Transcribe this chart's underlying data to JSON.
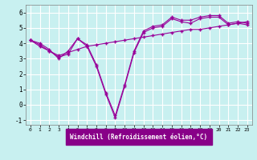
{
  "xlabel": "Windchill (Refroidissement éolien,°C)",
  "bg_color": "#c8f0f0",
  "label_bg_color": "#880088",
  "line_color": "#990099",
  "grid_color": "#ffffff",
  "xlim": [
    -0.5,
    23.5
  ],
  "ylim": [
    -1.3,
    6.5
  ],
  "yticks": [
    -1,
    0,
    1,
    2,
    3,
    4,
    5,
    6
  ],
  "xticks": [
    0,
    1,
    2,
    3,
    4,
    5,
    6,
    7,
    8,
    9,
    10,
    11,
    12,
    13,
    14,
    15,
    16,
    17,
    18,
    19,
    20,
    21,
    22,
    23
  ],
  "line1_x": [
    0,
    1,
    2,
    3,
    4,
    5,
    6,
    7,
    8,
    9,
    10,
    11,
    12,
    13,
    14,
    15,
    16,
    17,
    18,
    19,
    20,
    21,
    22,
    23
  ],
  "line1_y": [
    4.2,
    4.0,
    3.6,
    3.0,
    3.5,
    4.3,
    3.9,
    2.6,
    0.8,
    -0.7,
    1.3,
    3.5,
    4.8,
    5.1,
    5.2,
    5.7,
    5.5,
    5.5,
    5.7,
    5.8,
    5.8,
    5.3,
    5.4,
    5.3
  ],
  "line2_x": [
    0,
    1,
    2,
    3,
    4,
    5,
    6,
    7,
    8,
    9,
    10,
    11,
    12,
    13,
    14,
    15,
    16,
    17,
    18,
    19,
    20,
    21,
    22,
    23
  ],
  "line2_y": [
    4.2,
    3.9,
    3.5,
    3.1,
    3.3,
    4.3,
    3.8,
    2.5,
    0.7,
    -0.85,
    1.2,
    3.4,
    4.7,
    5.0,
    5.1,
    5.6,
    5.4,
    5.3,
    5.6,
    5.7,
    5.7,
    5.2,
    5.3,
    5.2
  ],
  "line3_x": [
    0,
    1,
    2,
    3,
    4,
    5,
    6,
    7,
    8,
    9,
    10,
    11,
    12,
    13,
    14,
    15,
    16,
    17,
    18,
    19,
    20,
    21,
    22,
    23
  ],
  "line3_y": [
    4.2,
    3.8,
    3.5,
    3.2,
    3.4,
    3.6,
    3.8,
    3.9,
    4.0,
    4.1,
    4.2,
    4.3,
    4.4,
    4.5,
    4.6,
    4.7,
    4.8,
    4.9,
    4.9,
    5.0,
    5.1,
    5.2,
    5.3,
    5.4
  ],
  "marker": "+"
}
